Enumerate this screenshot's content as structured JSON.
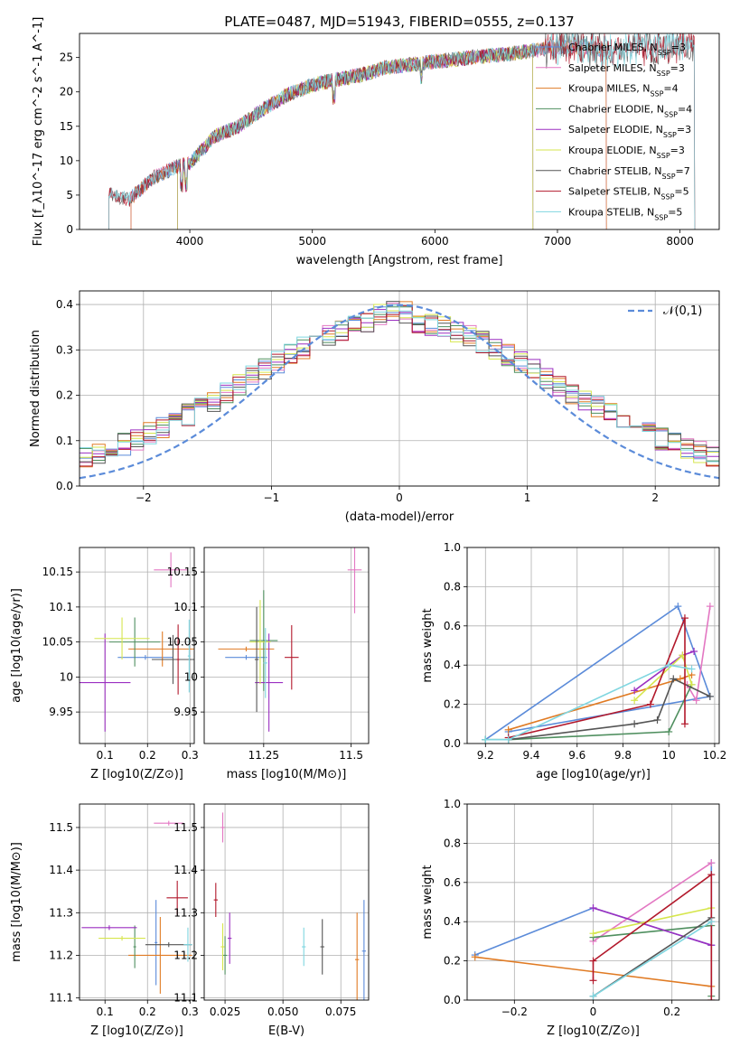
{
  "figure_title": "PLATE=0487, MJD=51943, FIBERID=0555, z=0.137",
  "colors": {
    "Chabrier MILES": "#5b8bd9",
    "Salpeter MILES": "#e377c2",
    "Kroupa MILES": "#e07b24",
    "Chabrier ELODIE": "#4f8f5f",
    "Salpeter ELODIE": "#9b2fc1",
    "Kroupa ELODIE": "#d6e64c",
    "Chabrier STELIB": "#555555",
    "Salpeter STELIB": "#b2182b",
    "Kroupa STELIB": "#7fd6e0"
  },
  "chart_data": [
    {
      "id": "spectrum",
      "type": "line",
      "title": "PLATE=0487, MJD=51943, FIBERID=0555, z=0.137",
      "xlabel": "wavelength [Angstrom, rest frame]",
      "ylabel": "Flux [f_λ10^-17 erg cm^-2 s^-1 A^-1]",
      "xlim": [
        3100,
        8320
      ],
      "ylim": [
        0,
        28.5
      ],
      "xticks": [
        4000,
        5000,
        6000,
        7000,
        8000
      ],
      "yticks": [
        0,
        5,
        10,
        15,
        20,
        25
      ],
      "grid": false,
      "legend_position": "top-right",
      "continuum_anchors": [
        [
          3340,
          5.1
        ],
        [
          3500,
          4.3
        ],
        [
          3700,
          7.5
        ],
        [
          3900,
          9.2
        ],
        [
          4000,
          9.6
        ],
        [
          4200,
          13.5
        ],
        [
          4400,
          15.0
        ],
        [
          4600,
          17.5
        ],
        [
          4800,
          19.6
        ],
        [
          5000,
          21.0
        ],
        [
          5200,
          21.8
        ],
        [
          5400,
          22.5
        ],
        [
          5600,
          23.5
        ],
        [
          5800,
          24.0
        ],
        [
          6000,
          24.4
        ],
        [
          6200,
          24.8
        ],
        [
          6400,
          25.2
        ],
        [
          6600,
          25.5
        ],
        [
          6800,
          26.0
        ],
        [
          7000,
          26.4
        ],
        [
          7200,
          26.6
        ],
        [
          7400,
          26.0
        ],
        [
          7600,
          26.5
        ],
        [
          7800,
          26.5
        ],
        [
          8000,
          26.7
        ],
        [
          8120,
          26.8
        ]
      ],
      "series": [
        {
          "name": "Chabrier MILES",
          "n_ssp": "3",
          "lambda_min": 3520,
          "lambda_max": 7400
        },
        {
          "name": "Salpeter MILES",
          "n_ssp": "3",
          "lambda_min": 3520,
          "lambda_max": 7400
        },
        {
          "name": "Kroupa MILES",
          "n_ssp": "4",
          "lambda_min": 3520,
          "lambda_max": 7400
        },
        {
          "name": "Chabrier ELODIE",
          "n_ssp": "4",
          "lambda_min": 3900,
          "lambda_max": 6800
        },
        {
          "name": "Salpeter ELODIE",
          "n_ssp": "3",
          "lambda_min": 3900,
          "lambda_max": 6800
        },
        {
          "name": "Kroupa ELODIE",
          "n_ssp": "3",
          "lambda_min": 3900,
          "lambda_max": 6800
        },
        {
          "name": "Chabrier STELIB",
          "n_ssp": "7",
          "lambda_min": 3340,
          "lambda_max": 8120
        },
        {
          "name": "Salpeter STELIB",
          "n_ssp": "5",
          "lambda_min": 3340,
          "lambda_max": 8120
        },
        {
          "name": "Kroupa STELIB",
          "n_ssp": "5",
          "lambda_min": 3340,
          "lambda_max": 8120
        }
      ]
    },
    {
      "id": "residuals",
      "type": "histogram",
      "xlabel": "(data-model)/error",
      "ylabel": "Normed distribution",
      "xlim": [
        -2.5,
        2.5
      ],
      "ylim": [
        0,
        0.43
      ],
      "xticks": [
        -2,
        -1,
        0,
        1,
        2
      ],
      "yticks": [
        0.0,
        0.1,
        0.2,
        0.3,
        0.4
      ],
      "grid": true,
      "legend_position": "top-right",
      "bin_width": 0.1,
      "reference": {
        "name": "𝒩(0,1)",
        "style": "dashed",
        "color": "#5b8bd9"
      }
    },
    {
      "id": "age_vs_Z",
      "type": "errorbar",
      "xlabel": "Z [log10(Z/Z⊙)]",
      "ylabel": "age [log10(age/yr)]",
      "xlim": [
        0.04,
        0.31
      ],
      "ylim": [
        9.905,
        10.185
      ],
      "xticks": [
        0.1,
        0.2,
        0.3
      ],
      "yticks": [
        9.95,
        10.0,
        10.05,
        10.1,
        10.15
      ],
      "grid": true,
      "points": [
        {
          "series": "Chabrier MILES",
          "x": 0.195,
          "xerr": 0.065,
          "y": 10.028,
          "yerr": 0.0
        },
        {
          "series": "Salpeter MILES",
          "x": 0.255,
          "xerr": 0.04,
          "y": 10.153,
          "yerr": 0.025
        },
        {
          "series": "Kroupa MILES",
          "x": 0.235,
          "xerr": 0.08,
          "y": 10.04,
          "yerr": 0.025
        },
        {
          "series": "Chabrier ELODIE",
          "x": 0.17,
          "xerr": 0.06,
          "y": 10.05,
          "yerr": 0.035
        },
        {
          "series": "Salpeter ELODIE",
          "x": 0.1,
          "xerr": 0.06,
          "y": 9.992,
          "yerr": 0.07
        },
        {
          "series": "Kroupa ELODIE",
          "x": 0.14,
          "xerr": 0.065,
          "y": 10.055,
          "yerr": 0.03
        },
        {
          "series": "Chabrier STELIB",
          "x": 0.26,
          "xerr": 0.05,
          "y": 10.025,
          "yerr": 0.035
        },
        {
          "series": "Salpeter STELIB",
          "x": 0.272,
          "xerr": 0.0,
          "y": 10.025,
          "yerr": 0.05
        },
        {
          "series": "Kroupa STELIB",
          "x": 0.298,
          "xerr": 0.0,
          "y": 10.03,
          "yerr": 0.052
        }
      ]
    },
    {
      "id": "age_vs_mass",
      "type": "errorbar",
      "xlabel": "mass [log10(M/M⊙)]",
      "ylabel": "",
      "xlim": [
        11.08,
        11.55
      ],
      "ylim": [
        9.905,
        10.185
      ],
      "xticks": [
        11.25,
        11.5
      ],
      "yticks": [
        9.95,
        10.0,
        10.05,
        10.1,
        10.15
      ],
      "grid": true,
      "points": [
        {
          "series": "Chabrier MILES",
          "x": 11.2,
          "xerr": 0.06,
          "y": 10.028,
          "yerr": 0.0
        },
        {
          "series": "Salpeter MILES",
          "x": 11.51,
          "xerr": 0.02,
          "y": 10.153,
          "yerr": 0.062
        },
        {
          "series": "Kroupa MILES",
          "x": 11.2,
          "xerr": 0.08,
          "y": 10.04,
          "yerr": 0.0
        },
        {
          "series": "Chabrier ELODIE",
          "x": 11.25,
          "xerr": 0.04,
          "y": 10.052,
          "yerr": 0.072
        },
        {
          "series": "Salpeter ELODIE",
          "x": 11.265,
          "xerr": 0.04,
          "y": 9.992,
          "yerr": 0.07
        },
        {
          "series": "Kroupa ELODIE",
          "x": 11.24,
          "xerr": 0.03,
          "y": 10.05,
          "yerr": 0.06
        },
        {
          "series": "Chabrier STELIB",
          "x": 11.23,
          "xerr": 0.0,
          "y": 10.025,
          "yerr": 0.075
        },
        {
          "series": "Salpeter STELIB",
          "x": 11.33,
          "xerr": 0.02,
          "y": 10.028,
          "yerr": 0.046
        },
        {
          "series": "Kroupa STELIB",
          "x": 11.255,
          "xerr": 0.0,
          "y": 10.02,
          "yerr": 0.05
        }
      ]
    },
    {
      "id": "weights_vs_age",
      "type": "line",
      "xlabel": "age [log10(age/yr)]",
      "ylabel": "mass weight",
      "xlim": [
        9.12,
        10.22
      ],
      "ylim": [
        0,
        1.0
      ],
      "xticks": [
        9.2,
        9.4,
        9.6,
        9.8,
        10.0,
        10.2
      ],
      "yticks": [
        0.0,
        0.2,
        0.4,
        0.6,
        0.8,
        1.0
      ],
      "grid": true,
      "series": [
        {
          "name": "Chabrier MILES",
          "points": [
            [
              9.2,
              0.02
            ],
            [
              10.04,
              0.7
            ],
            [
              10.18,
              0.24
            ],
            [
              9.3,
              0.06
            ]
          ]
        },
        {
          "name": "Salpeter MILES",
          "points": [
            [
              10.18,
              0.7
            ],
            [
              10.12,
              0.22
            ],
            [
              10.08,
              0.3
            ]
          ]
        },
        {
          "name": "Kroupa MILES",
          "points": [
            [
              9.3,
              0.07
            ],
            [
              10.05,
              0.33
            ],
            [
              10.1,
              0.35
            ]
          ]
        },
        {
          "name": "Chabrier ELODIE",
          "points": [
            [
              9.2,
              0.02
            ],
            [
              9.3,
              0.02
            ],
            [
              10.0,
              0.06
            ],
            [
              10.1,
              0.3
            ]
          ]
        },
        {
          "name": "Salpeter ELODIE",
          "points": [
            [
              9.85,
              0.27
            ],
            [
              10.06,
              0.45
            ],
            [
              10.11,
              0.47
            ]
          ]
        },
        {
          "name": "Kroupa ELODIE",
          "points": [
            [
              9.85,
              0.22
            ],
            [
              10.06,
              0.45
            ],
            [
              10.1,
              0.3
            ]
          ]
        },
        {
          "name": "Chabrier STELIB",
          "points": [
            [
              9.3,
              0.02
            ],
            [
              9.85,
              0.1
            ],
            [
              9.95,
              0.12
            ],
            [
              10.02,
              0.33
            ],
            [
              10.18,
              0.24
            ]
          ]
        },
        {
          "name": "Salpeter STELIB",
          "points": [
            [
              9.3,
              0.03
            ],
            [
              9.92,
              0.2
            ],
            [
              10.07,
              0.64
            ],
            [
              10.07,
              0.1
            ]
          ]
        },
        {
          "name": "Kroupa STELIB",
          "points": [
            [
              9.2,
              0.02
            ],
            [
              9.3,
              0.02
            ],
            [
              10.0,
              0.4
            ],
            [
              10.1,
              0.38
            ]
          ]
        }
      ]
    },
    {
      "id": "mass_vs_Z",
      "type": "errorbar",
      "xlabel": "Z [log10(Z/Z⊙)]",
      "ylabel": "mass [log10(M/M⊙)]",
      "xlim": [
        0.04,
        0.31
      ],
      "ylim": [
        11.095,
        11.555
      ],
      "xticks": [
        0.1,
        0.2,
        0.3
      ],
      "yticks": [
        11.1,
        11.2,
        11.3,
        11.4,
        11.5
      ],
      "grid": true,
      "points": [
        {
          "series": "Chabrier MILES",
          "x": 0.22,
          "xerr": 0.0,
          "y": 11.23,
          "yerr": 0.1
        },
        {
          "series": "Salpeter MILES",
          "x": 0.25,
          "xerr": 0.035,
          "y": 11.51,
          "yerr": 0.0
        },
        {
          "series": "Kroupa MILES",
          "x": 0.23,
          "xerr": 0.075,
          "y": 11.2,
          "yerr": 0.09
        },
        {
          "series": "Chabrier ELODIE",
          "x": 0.17,
          "xerr": 0.0,
          "y": 11.22,
          "yerr": 0.05
        },
        {
          "series": "Salpeter ELODIE",
          "x": 0.11,
          "xerr": 0.065,
          "y": 11.265,
          "yerr": 0.0
        },
        {
          "series": "Kroupa ELODIE",
          "x": 0.14,
          "xerr": 0.055,
          "y": 11.24,
          "yerr": 0.0
        },
        {
          "series": "Chabrier STELIB",
          "x": 0.25,
          "xerr": 0.055,
          "y": 11.225,
          "yerr": 0.0
        },
        {
          "series": "Salpeter STELIB",
          "x": 0.27,
          "xerr": 0.025,
          "y": 11.335,
          "yerr": 0.04
        },
        {
          "series": "Kroupa STELIB",
          "x": 0.295,
          "xerr": 0.01,
          "y": 11.225,
          "yerr": 0.04
        }
      ]
    },
    {
      "id": "mass_vs_ebv",
      "type": "errorbar",
      "xlabel": "E(B-V)",
      "ylabel": "",
      "xlim": [
        0.016,
        0.087
      ],
      "ylim": [
        11.095,
        11.555
      ],
      "xticks": [
        0.025,
        0.05,
        0.075
      ],
      "xtick_labels": [
        "0.025",
        "0.050",
        "0.075"
      ],
      "yticks": [
        11.1,
        11.2,
        11.3,
        11.4,
        11.5
      ],
      "grid": true,
      "points": [
        {
          "series": "Chabrier MILES",
          "x": 0.085,
          "xerr": 0.0,
          "y": 11.21,
          "yerr": 0.12
        },
        {
          "series": "Salpeter MILES",
          "x": 0.024,
          "xerr": 0.0,
          "y": 11.5,
          "yerr": 0.035
        },
        {
          "series": "Kroupa MILES",
          "x": 0.082,
          "xerr": 0.0,
          "y": 11.19,
          "yerr": 0.11
        },
        {
          "series": "Chabrier ELODIE",
          "x": 0.025,
          "xerr": 0.0,
          "y": 11.2,
          "yerr": 0.045
        },
        {
          "series": "Salpeter ELODIE",
          "x": 0.027,
          "xerr": 0.0,
          "y": 11.24,
          "yerr": 0.06
        },
        {
          "series": "Kroupa ELODIE",
          "x": 0.024,
          "xerr": 0.0,
          "y": 11.22,
          "yerr": 0.055
        },
        {
          "series": "Chabrier STELIB",
          "x": 0.067,
          "xerr": 0.0,
          "y": 11.22,
          "yerr": 0.065
        },
        {
          "series": "Salpeter STELIB",
          "x": 0.021,
          "xerr": 0.0,
          "y": 11.33,
          "yerr": 0.04
        },
        {
          "series": "Kroupa STELIB",
          "x": 0.059,
          "xerr": 0.0,
          "y": 11.22,
          "yerr": 0.045
        }
      ]
    },
    {
      "id": "weights_vs_Z",
      "type": "line",
      "xlabel": "Z [log10(Z/Z⊙)]",
      "ylabel": "mass weight",
      "xlim": [
        -0.32,
        0.32
      ],
      "ylim": [
        0,
        1.0
      ],
      "xticks": [
        -0.2,
        0.0,
        0.2
      ],
      "yticks": [
        0.0,
        0.2,
        0.4,
        0.6,
        0.8,
        1.0
      ],
      "grid": true,
      "series": [
        {
          "name": "Chabrier MILES",
          "points": [
            [
              -0.3,
              0.23
            ],
            [
              0.0,
              0.47
            ],
            [
              0.3,
              0.28
            ],
            [
              0.3,
              0.7
            ]
          ]
        },
        {
          "name": "Salpeter MILES",
          "points": [
            [
              0.0,
              0.3
            ],
            [
              0.3,
              0.7
            ]
          ]
        },
        {
          "name": "Kroupa MILES",
          "points": [
            [
              -0.3,
              0.22
            ],
            [
              0.3,
              0.07
            ]
          ]
        },
        {
          "name": "Chabrier ELODIE",
          "points": [
            [
              0.0,
              0.32
            ],
            [
              0.3,
              0.38
            ],
            [
              0.3,
              0.02
            ]
          ]
        },
        {
          "name": "Salpeter ELODIE",
          "points": [
            [
              0.0,
              0.47
            ],
            [
              0.3,
              0.28
            ]
          ]
        },
        {
          "name": "Kroupa ELODIE",
          "points": [
            [
              0.0,
              0.34
            ],
            [
              0.3,
              0.47
            ]
          ]
        },
        {
          "name": "Chabrier STELIB",
          "points": [
            [
              0.0,
              0.02
            ],
            [
              0.3,
              0.42
            ]
          ]
        },
        {
          "name": "Salpeter STELIB",
          "points": [
            [
              0.0,
              0.1
            ],
            [
              0.0,
              0.2
            ],
            [
              0.3,
              0.64
            ],
            [
              0.3,
              0.0
            ]
          ]
        },
        {
          "name": "Kroupa STELIB",
          "points": [
            [
              0.0,
              0.02
            ],
            [
              0.3,
              0.4
            ]
          ]
        }
      ]
    }
  ]
}
